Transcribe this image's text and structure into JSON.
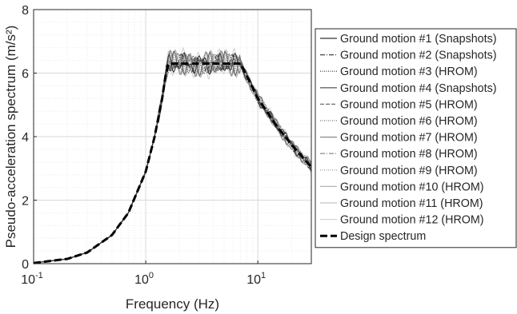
{
  "chart_data": {
    "type": "line",
    "xscale": "log",
    "xlabel": "Frequency (Hz)",
    "ylabel": "Pseudo-acceleration spectrum (m/s²)",
    "xlim": [
      0.1,
      30
    ],
    "ylim": [
      0,
      8
    ],
    "grid": true,
    "legend_position": "right, outside",
    "x_tick_labels": [
      {
        "value": 0.1,
        "base": "10",
        "exp": "-1"
      },
      {
        "value": 1,
        "base": "10",
        "exp": "0"
      },
      {
        "value": 10,
        "base": "10",
        "exp": "1"
      }
    ],
    "y_ticks": [
      {
        "value": 0,
        "label": "0"
      },
      {
        "value": 2,
        "label": "2"
      },
      {
        "value": 4,
        "label": "4"
      },
      {
        "value": 6,
        "label": "6"
      },
      {
        "value": 8,
        "label": "8"
      }
    ],
    "base_curve": {
      "x": [
        0.1,
        0.2,
        0.3,
        0.5,
        0.7,
        1.0,
        1.2,
        1.4,
        1.5,
        1.6,
        3,
        5,
        7,
        8,
        10,
        15,
        20,
        25,
        30
      ],
      "y": [
        0.02,
        0.15,
        0.35,
        0.9,
        1.6,
        2.9,
        4.0,
        5.2,
        5.9,
        6.3,
        6.3,
        6.3,
        6.3,
        5.9,
        5.2,
        4.3,
        3.75,
        3.35,
        3.05
      ]
    },
    "series": [
      {
        "name": "Ground motion #1 (Snapshots)",
        "color": "#333333",
        "dash": "",
        "amp": 0.35,
        "phase": 0.0
      },
      {
        "name": "Ground motion #2 (Snapshots)",
        "color": "#444444",
        "dash": "6,2,1,2",
        "amp": 0.3,
        "phase": 1.1
      },
      {
        "name": "Ground motion #3 (HROM)",
        "color": "#555555",
        "dash": "1,1.5",
        "amp": 0.33,
        "phase": 2.3
      },
      {
        "name": "Ground motion #4 (Snapshots)",
        "color": "#666666",
        "dash": "",
        "amp": 0.4,
        "phase": 3.7
      },
      {
        "name": "Ground motion #5 (HROM)",
        "color": "#6e6e6e",
        "dash": "5,2",
        "amp": 0.28,
        "phase": 0.6
      },
      {
        "name": "Ground motion #6 (HROM)",
        "color": "#7a7a7a",
        "dash": "1,1.5",
        "amp": 0.3,
        "phase": 4.4
      },
      {
        "name": "Ground motion #7 (HROM)",
        "color": "#888888",
        "dash": "",
        "amp": 0.42,
        "phase": 5.2
      },
      {
        "name": "Ground motion #8 (HROM)",
        "color": "#959595",
        "dash": "6,2,1,2",
        "amp": 0.32,
        "phase": 1.9
      },
      {
        "name": "Ground motion #9 (HROM)",
        "color": "#a3a3a3",
        "dash": "1,1.5",
        "amp": 0.36,
        "phase": 2.9
      },
      {
        "name": "Ground motion #10 (HROM)",
        "color": "#b4b4b4",
        "dash": "",
        "amp": 0.45,
        "phase": 3.3
      },
      {
        "name": "Ground motion #11 (HROM)",
        "color": "#c4c4c4",
        "dash": "",
        "amp": 0.4,
        "phase": 4.9
      },
      {
        "name": "Ground motion #12 (HROM)",
        "color": "#d4d4d4",
        "dash": "",
        "amp": 0.5,
        "phase": 0.3
      },
      {
        "name": "Design spectrum",
        "color": "#000000",
        "dash": "9,4",
        "width": 3,
        "x": [
          0.1,
          0.2,
          0.3,
          0.5,
          0.7,
          1.0,
          1.2,
          1.4,
          1.5,
          1.6,
          3,
          5,
          7,
          8,
          10,
          15,
          20,
          25,
          30
        ],
        "y": [
          0.02,
          0.15,
          0.35,
          0.9,
          1.6,
          2.9,
          4.0,
          5.2,
          5.9,
          6.3,
          6.3,
          6.3,
          6.3,
          5.9,
          5.2,
          4.3,
          3.75,
          3.35,
          3.05
        ]
      }
    ]
  }
}
